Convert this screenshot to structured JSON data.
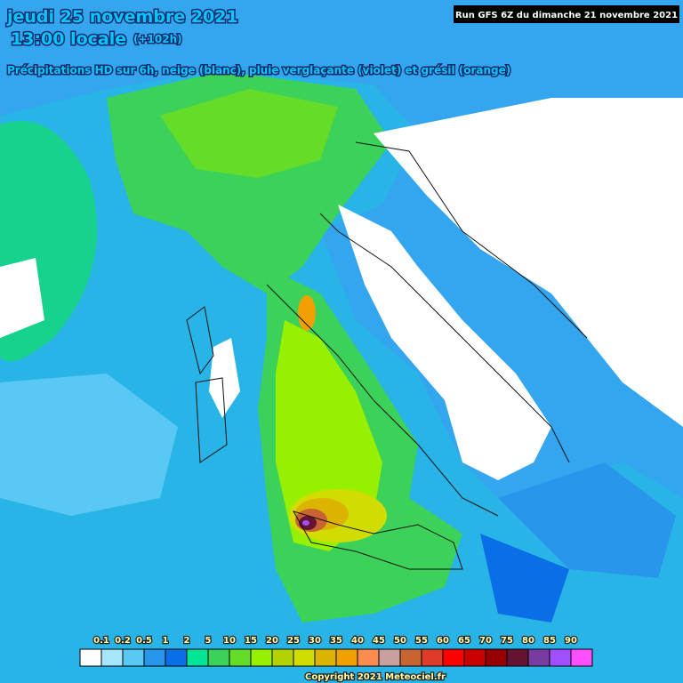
{
  "header": {
    "date": "jeudi 25 novembre 2021",
    "time": "13:00 locale",
    "lead": "(+102h)",
    "subtitle": "Précipitations HD sur 6h, neige (blanc), pluie verglaçante (violet) et grésil (orange)",
    "run": "Run GFS 6Z du dimanche 21 novembre 2021"
  },
  "legend": {
    "labels": [
      0.1,
      0.2,
      0.5,
      1,
      2,
      5,
      10,
      15,
      20,
      25,
      30,
      35,
      40,
      45,
      50,
      55,
      60,
      65,
      70,
      75,
      80,
      85,
      90
    ],
    "colors": [
      "#ffffff",
      "#a6e6ff",
      "#5ac8f5",
      "#2896eb",
      "#0a6ee6",
      "#00e696",
      "#3cd25a",
      "#64dc28",
      "#96f000",
      "#b4d200",
      "#d2dc00",
      "#dcb400",
      "#f0a000",
      "#fa8c50",
      "#c8a0a0",
      "#c86432",
      "#dc3c28",
      "#ff0000",
      "#c80000",
      "#960000",
      "#641432",
      "#783ca0",
      "#a050ff",
      "#ff50ff"
    ]
  },
  "footer": {
    "copyright": "Copyright 2021 Meteociel.fr"
  }
}
